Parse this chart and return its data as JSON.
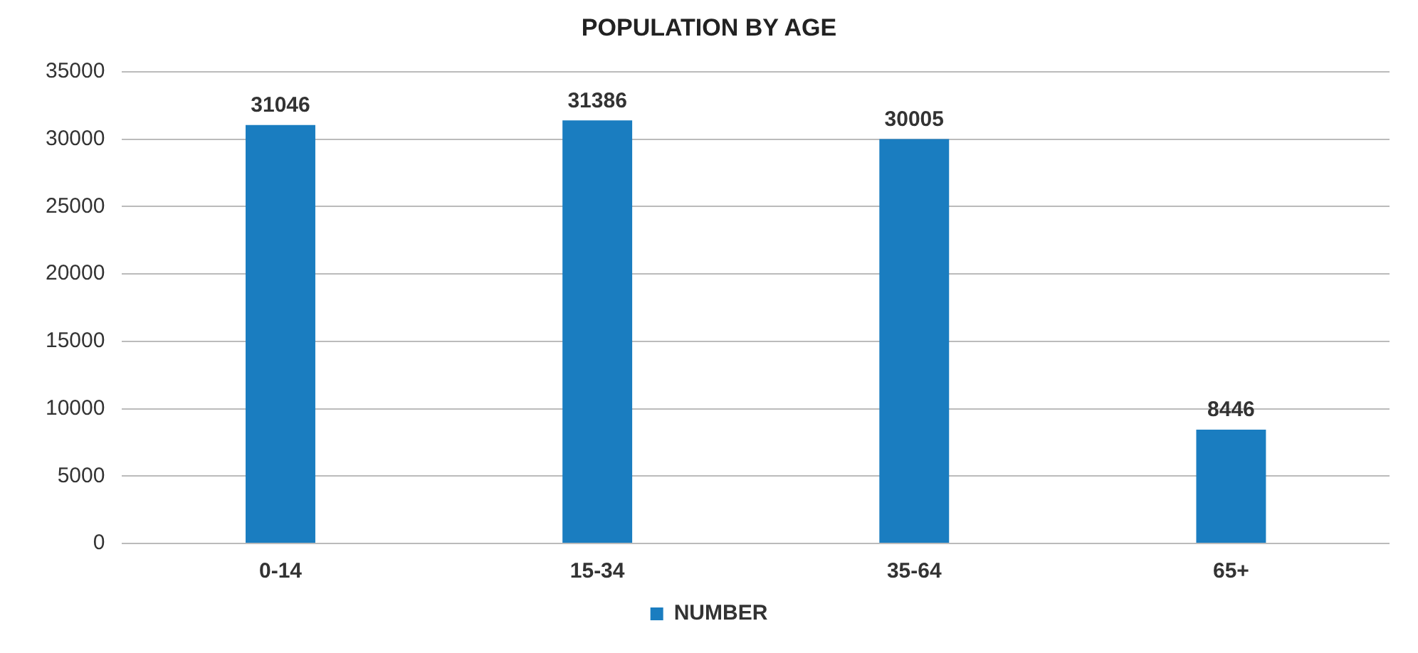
{
  "chart_data": {
    "type": "bar",
    "title": "POPULATION BY AGE",
    "categories": [
      "0-14",
      "15-34",
      "35-64",
      "65+"
    ],
    "series": [
      {
        "name": "NUMBER",
        "color": "#1a7dc0",
        "values": [
          31046,
          31386,
          30005,
          8446
        ]
      }
    ],
    "ylim": [
      0,
      35000
    ],
    "yticks": [
      0,
      5000,
      10000,
      15000,
      20000,
      25000,
      30000,
      35000
    ],
    "grid": "y",
    "legend": "bottom",
    "data_labels": true
  }
}
